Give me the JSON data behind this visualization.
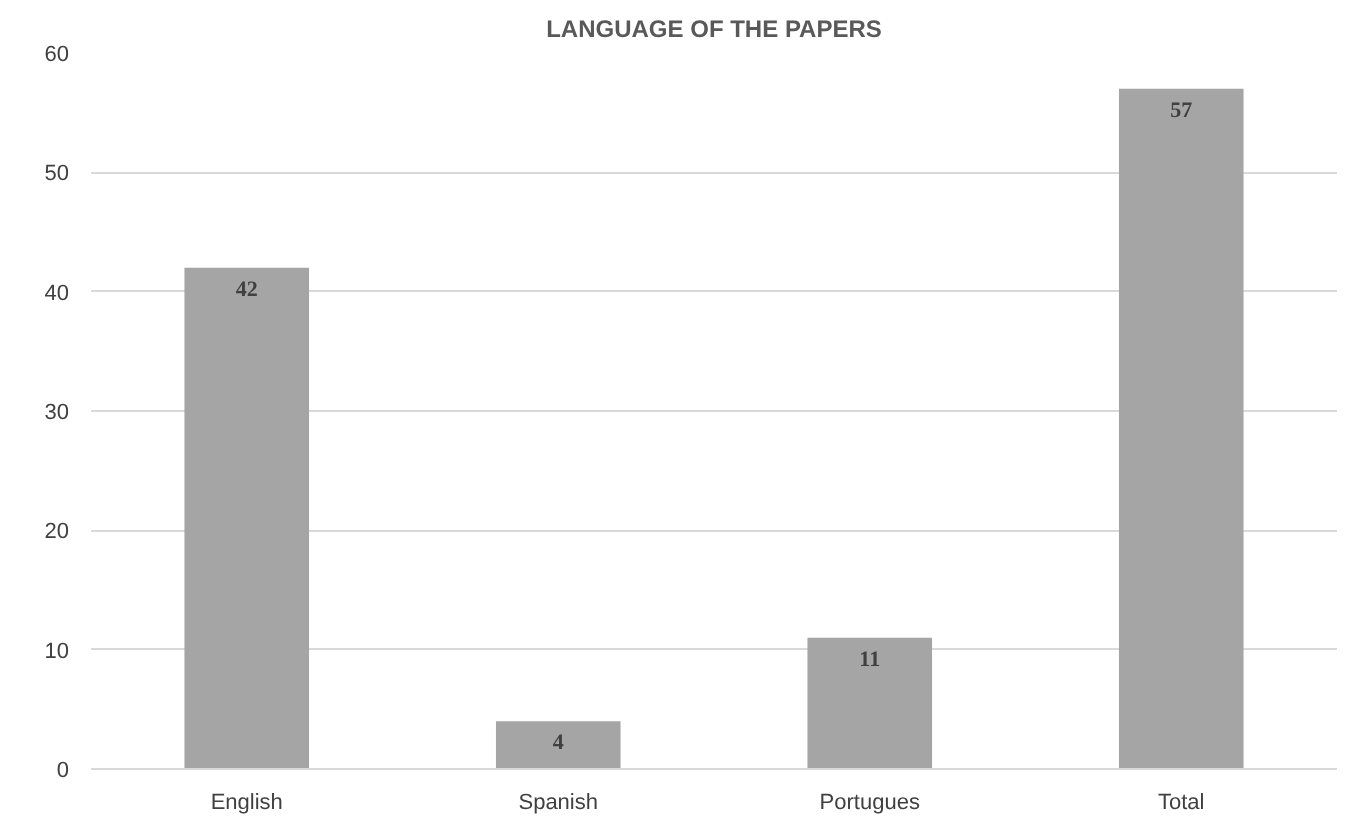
{
  "chart_data": {
    "type": "bar",
    "title": "LANGUAGE OF THE PAPERS",
    "categories": [
      "English",
      "Spanish",
      "Portugues",
      "Total"
    ],
    "values": [
      42,
      4,
      11,
      57
    ],
    "color": "#a5a5a5",
    "ylim": [
      0,
      60
    ],
    "yticks": [
      0,
      10,
      20,
      30,
      40,
      50,
      60
    ],
    "grid": "y",
    "data_labels": true
  }
}
